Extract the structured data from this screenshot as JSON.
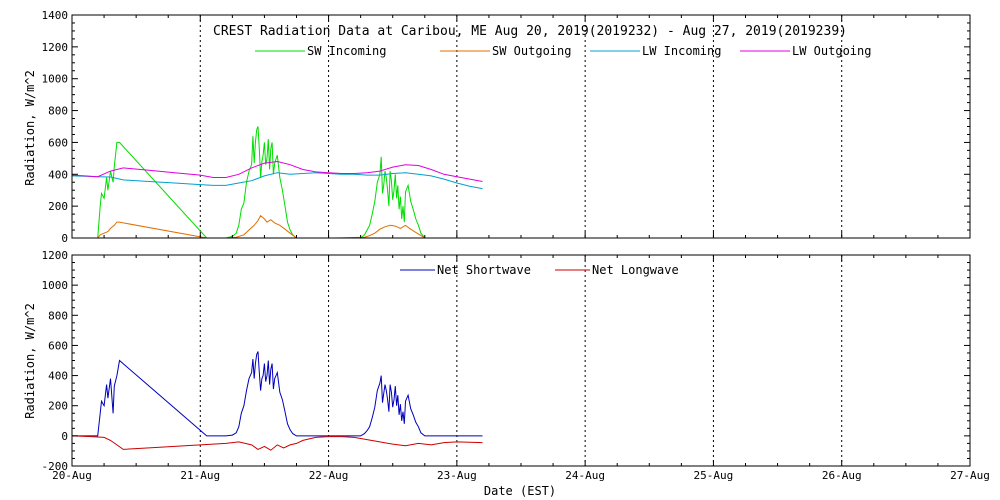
{
  "chart_data": [
    {
      "type": "line",
      "title": "CREST Radiation Data at Caribou, ME   Aug 20, 2019(2019232) - Aug 27, 2019(2019239)",
      "ylabel": "Radiation, W/m^2",
      "xlabel": "",
      "ylim": [
        0,
        1400
      ],
      "y_ticks": [
        0,
        200,
        400,
        600,
        800,
        1000,
        1200,
        1400
      ],
      "xlim": [
        0,
        7
      ],
      "x_ticks": [
        0,
        1,
        2,
        3,
        4,
        5,
        6,
        7
      ],
      "x_tick_labels": [
        "",
        "",
        "",
        "",
        "",
        "",
        "",
        ""
      ],
      "grid": true,
      "legend": "top",
      "series": [
        {
          "name": "SW Incoming",
          "color": "#00dd00",
          "x": [
            0.0,
            0.15,
            0.2,
            0.22,
            0.23,
            0.25,
            0.27,
            0.28,
            0.3,
            0.32,
            0.33,
            0.35,
            0.37,
            1.05,
            1.2,
            1.25,
            1.28,
            1.3,
            1.32,
            1.34,
            1.36,
            1.38,
            1.4,
            1.41,
            1.42,
            1.43,
            1.44,
            1.45,
            1.46,
            1.47,
            1.48,
            1.49,
            1.5,
            1.51,
            1.52,
            1.53,
            1.54,
            1.55,
            1.56,
            1.57,
            1.58,
            1.6,
            1.62,
            1.64,
            1.66,
            1.68,
            1.7,
            1.72,
            1.75,
            2.05,
            2.25,
            2.28,
            2.3,
            2.32,
            2.34,
            2.36,
            2.38,
            2.4,
            2.41,
            2.42,
            2.43,
            2.44,
            2.45,
            2.46,
            2.47,
            2.48,
            2.49,
            2.5,
            2.51,
            2.52,
            2.53,
            2.54,
            2.55,
            2.56,
            2.57,
            2.58,
            2.59,
            2.6,
            2.62,
            2.64,
            2.66,
            2.68,
            2.7,
            2.72,
            2.75
          ],
          "values": [
            0,
            0,
            0,
            200,
            280,
            250,
            380,
            300,
            420,
            350,
            450,
            600,
            600,
            0,
            0,
            10,
            30,
            80,
            180,
            220,
            350,
            420,
            460,
            640,
            470,
            600,
            680,
            700,
            560,
            380,
            480,
            520,
            600,
            460,
            500,
            620,
            430,
            560,
            600,
            400,
            470,
            520,
            380,
            300,
            200,
            100,
            50,
            20,
            0,
            0,
            0,
            20,
            50,
            80,
            150,
            230,
            350,
            400,
            510,
            280,
            330,
            420,
            380,
            300,
            200,
            420,
            360,
            240,
            300,
            400,
            250,
            330,
            180,
            260,
            120,
            200,
            100,
            290,
            330,
            230,
            180,
            120,
            80,
            30,
            0
          ]
        },
        {
          "name": "SW Outgoing",
          "color": "#e07000",
          "x": [
            0.0,
            0.15,
            0.2,
            0.22,
            0.25,
            0.28,
            0.3,
            0.33,
            0.35,
            0.37,
            0.4,
            1.05,
            1.2,
            1.28,
            1.34,
            1.38,
            1.42,
            1.45,
            1.47,
            1.5,
            1.52,
            1.55,
            1.58,
            1.62,
            1.66,
            1.7,
            1.75,
            2.05,
            2.28,
            2.32,
            2.36,
            2.4,
            2.44,
            2.48,
            2.52,
            2.56,
            2.6,
            2.64,
            2.68,
            2.72,
            2.75
          ],
          "values": [
            0,
            0,
            0,
            20,
            30,
            40,
            60,
            80,
            100,
            100,
            95,
            0,
            0,
            5,
            20,
            50,
            80,
            110,
            140,
            120,
            100,
            115,
            95,
            80,
            55,
            30,
            0,
            0,
            5,
            15,
            30,
            55,
            70,
            80,
            75,
            60,
            80,
            55,
            35,
            15,
            0
          ]
        },
        {
          "name": "LW Incoming",
          "color": "#00a0d0",
          "x": [
            0.0,
            0.1,
            0.2,
            0.3,
            0.4,
            0.6,
            0.8,
            1.0,
            1.1,
            1.2,
            1.3,
            1.4,
            1.5,
            1.6,
            1.7,
            1.8,
            1.9,
            2.0,
            2.1,
            2.2,
            2.3,
            2.4,
            2.5,
            2.6,
            2.7,
            2.8,
            2.9,
            3.0,
            3.1,
            3.2
          ],
          "values": [
            390,
            388,
            385,
            383,
            365,
            355,
            345,
            335,
            330,
            330,
            345,
            360,
            390,
            410,
            400,
            405,
            410,
            405,
            400,
            400,
            395,
            395,
            405,
            410,
            400,
            390,
            370,
            345,
            325,
            310
          ]
        },
        {
          "name": "LW Outgoing",
          "color": "#e000e0",
          "x": [
            0.0,
            0.1,
            0.2,
            0.3,
            0.4,
            0.6,
            0.8,
            1.0,
            1.1,
            1.2,
            1.3,
            1.4,
            1.5,
            1.6,
            1.7,
            1.8,
            1.9,
            2.0,
            2.1,
            2.2,
            2.3,
            2.4,
            2.5,
            2.6,
            2.7,
            2.8,
            2.9,
            3.0,
            3.1,
            3.2
          ],
          "values": [
            395,
            390,
            385,
            420,
            440,
            425,
            410,
            395,
            380,
            380,
            400,
            440,
            470,
            480,
            460,
            430,
            415,
            410,
            405,
            405,
            410,
            420,
            445,
            460,
            455,
            430,
            400,
            385,
            370,
            355
          ]
        }
      ]
    },
    {
      "type": "line",
      "title": "",
      "ylabel": "Radiation, W/m^2",
      "xlabel": "Date (EST)",
      "ylim": [
        -200,
        1200
      ],
      "y_ticks": [
        -200,
        0,
        200,
        400,
        600,
        800,
        1000,
        1200
      ],
      "xlim": [
        0,
        7
      ],
      "x_ticks": [
        0,
        1,
        2,
        3,
        4,
        5,
        6,
        7
      ],
      "x_tick_labels": [
        "20-Aug",
        "21-Aug",
        "22-Aug",
        "23-Aug",
        "24-Aug",
        "25-Aug",
        "26-Aug",
        "27-Aug"
      ],
      "grid": true,
      "legend": "top",
      "series": [
        {
          "name": "Net Shortwave",
          "color": "#0000bb",
          "x": [
            0.0,
            0.15,
            0.2,
            0.22,
            0.23,
            0.25,
            0.27,
            0.28,
            0.3,
            0.32,
            0.33,
            0.35,
            0.37,
            1.05,
            1.2,
            1.25,
            1.28,
            1.3,
            1.32,
            1.34,
            1.36,
            1.38,
            1.4,
            1.41,
            1.42,
            1.43,
            1.44,
            1.45,
            1.46,
            1.47,
            1.48,
            1.49,
            1.5,
            1.51,
            1.52,
            1.53,
            1.54,
            1.55,
            1.56,
            1.57,
            1.58,
            1.6,
            1.62,
            1.64,
            1.66,
            1.68,
            1.7,
            1.72,
            1.75,
            2.05,
            2.25,
            2.28,
            2.3,
            2.32,
            2.34,
            2.36,
            2.38,
            2.4,
            2.41,
            2.42,
            2.43,
            2.44,
            2.45,
            2.46,
            2.47,
            2.48,
            2.49,
            2.5,
            2.51,
            2.52,
            2.53,
            2.54,
            2.55,
            2.56,
            2.57,
            2.58,
            2.59,
            2.6,
            2.62,
            2.64,
            2.66,
            2.68,
            2.7,
            2.72,
            2.75,
            3.2
          ],
          "values": [
            0,
            0,
            0,
            150,
            230,
            200,
            340,
            250,
            380,
            150,
            330,
            400,
            500,
            0,
            0,
            5,
            20,
            60,
            150,
            200,
            300,
            380,
            420,
            510,
            380,
            480,
            540,
            560,
            420,
            300,
            380,
            400,
            480,
            360,
            400,
            500,
            340,
            440,
            480,
            310,
            380,
            420,
            290,
            240,
            160,
            80,
            40,
            15,
            0,
            0,
            0,
            15,
            35,
            60,
            120,
            190,
            300,
            350,
            400,
            220,
            280,
            340,
            300,
            240,
            160,
            340,
            290,
            190,
            240,
            330,
            200,
            270,
            140,
            210,
            100,
            160,
            80,
            230,
            270,
            180,
            140,
            90,
            60,
            20,
            0,
            0
          ]
        },
        {
          "name": "Net Longwave",
          "color": "#cc0000",
          "x": [
            0.0,
            0.15,
            0.25,
            0.3,
            0.35,
            0.4,
            0.6,
            0.8,
            1.0,
            1.2,
            1.3,
            1.4,
            1.45,
            1.5,
            1.55,
            1.6,
            1.65,
            1.7,
            1.75,
            1.8,
            1.85,
            1.9,
            2.0,
            2.1,
            2.2,
            2.3,
            2.4,
            2.5,
            2.6,
            2.7,
            2.8,
            2.9,
            3.0,
            3.2
          ],
          "values": [
            0,
            -5,
            -10,
            -30,
            -60,
            -90,
            -80,
            -70,
            -60,
            -50,
            -40,
            -60,
            -90,
            -70,
            -95,
            -60,
            -80,
            -60,
            -50,
            -30,
            -20,
            -10,
            -5,
            -5,
            -10,
            -25,
            -40,
            -55,
            -65,
            -50,
            -60,
            -45,
            -40,
            -45
          ]
        }
      ]
    }
  ]
}
